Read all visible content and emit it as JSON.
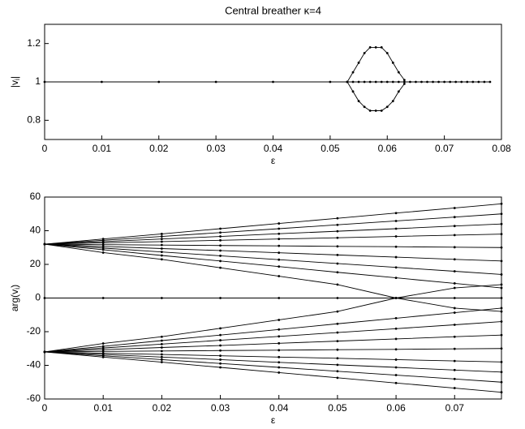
{
  "chart_data": [
    {
      "type": "line",
      "title": "Central breather   κ=4",
      "xlabel": "ε",
      "ylabel": {
        "base": "|v",
        "sub": "i",
        "end": "|"
      },
      "x": [
        0,
        0.01,
        0.02,
        0.03,
        0.04,
        0.05,
        0.053,
        0.054,
        0.055,
        0.056,
        0.057,
        0.058,
        0.059,
        0.06,
        0.061,
        0.062,
        0.063,
        0.064,
        0.065,
        0.066,
        0.067,
        0.068,
        0.069,
        0.07,
        0.071,
        0.072,
        0.073,
        0.074,
        0.075,
        0.076,
        0.077,
        0.078
      ],
      "series": [
        {
          "color": "#000000",
          "values": [
            1,
            1,
            1,
            1,
            1,
            1,
            1,
            1,
            1,
            1,
            1,
            1,
            1,
            1,
            1,
            1,
            1,
            1,
            1,
            1,
            1,
            1,
            1,
            1,
            1,
            1,
            1,
            1,
            1,
            1,
            1,
            1
          ]
        },
        {
          "color": "#000000",
          "values": [
            null,
            null,
            null,
            null,
            null,
            null,
            1,
            1.05,
            1.1,
            1.15,
            1.18,
            1.18,
            1.18,
            1.15,
            1.1,
            1.05,
            1.01,
            null,
            null,
            null,
            null,
            null,
            null,
            null,
            null,
            null,
            null,
            null,
            null,
            null,
            null,
            null
          ]
        },
        {
          "color": "#000000",
          "values": [
            null,
            null,
            null,
            null,
            null,
            null,
            1,
            0.95,
            0.9,
            0.87,
            0.85,
            0.85,
            0.85,
            0.87,
            0.9,
            0.95,
            0.99,
            null,
            null,
            null,
            null,
            null,
            null,
            null,
            null,
            null,
            null,
            null,
            null,
            null,
            null,
            null
          ]
        }
      ],
      "xlim": [
        0,
        0.08
      ],
      "xticks": [
        0,
        0.01,
        0.02,
        0.03,
        0.04,
        0.05,
        0.06,
        0.07,
        0.08
      ],
      "ylim": [
        0.7,
        1.3
      ],
      "yticks": [
        0.8,
        1,
        1.2
      ]
    },
    {
      "type": "line",
      "xlabel": "ε",
      "ylabel": {
        "base": "arg(v",
        "sub": "i",
        "end": ")"
      },
      "x": [
        0,
        0.01,
        0.02,
        0.03,
        0.04,
        0.05,
        0.06,
        0.07,
        0.078
      ],
      "series": [
        {
          "color": "#000000",
          "values": [
            32,
            35.1,
            38.1,
            41.2,
            44.3,
            47.4,
            50.5,
            53.5,
            56
          ]
        },
        {
          "color": "#000000",
          "values": [
            32,
            34.3,
            36.6,
            38.9,
            41.2,
            43.5,
            45.8,
            48.1,
            50
          ]
        },
        {
          "color": "#000000",
          "values": [
            32,
            33.5,
            35.1,
            36.6,
            38.2,
            39.7,
            41.2,
            42.8,
            44
          ]
        },
        {
          "color": "#000000",
          "values": [
            32,
            32.8,
            33.5,
            34.3,
            35.1,
            35.8,
            36.6,
            37.4,
            38
          ]
        },
        {
          "color": "#000000",
          "values": [
            32,
            31.7,
            31.5,
            31.2,
            31,
            30.7,
            30.5,
            30.2,
            30
          ]
        },
        {
          "color": "#000000",
          "values": [
            32,
            30.7,
            29.4,
            28.2,
            26.9,
            25.6,
            24.3,
            23,
            22
          ]
        },
        {
          "color": "#000000",
          "values": [
            32,
            29.7,
            27.4,
            25.1,
            22.8,
            20.5,
            18.2,
            15.9,
            14
          ]
        },
        {
          "color": "#000000",
          "values": [
            32,
            28.7,
            25.3,
            22,
            18.7,
            15.3,
            12,
            8.7,
            6
          ]
        },
        {
          "color": "#000000",
          "values": [
            32,
            27,
            23,
            18,
            13,
            8,
            0,
            6,
            8
          ]
        },
        {
          "color": "#000000",
          "values": [
            0,
            0,
            0,
            0,
            0,
            0,
            0,
            0,
            0
          ]
        },
        {
          "color": "#000000",
          "values": [
            -32,
            -27,
            -23,
            -18,
            -13,
            -8,
            0,
            -6,
            -8
          ]
        },
        {
          "color": "#000000",
          "values": [
            -32,
            -28.7,
            -25.3,
            -22,
            -18.7,
            -15.3,
            -12,
            -8.7,
            -6
          ]
        },
        {
          "color": "#000000",
          "values": [
            -32,
            -29.7,
            -27.4,
            -25.1,
            -22.8,
            -20.5,
            -18.2,
            -15.9,
            -14
          ]
        },
        {
          "color": "#000000",
          "values": [
            -32,
            -30.7,
            -29.4,
            -28.2,
            -26.9,
            -25.6,
            -24.3,
            -23,
            -22
          ]
        },
        {
          "color": "#000000",
          "values": [
            -32,
            -31.7,
            -31.5,
            -31.2,
            -31,
            -30.7,
            -30.5,
            -30.2,
            -30
          ]
        },
        {
          "color": "#000000",
          "values": [
            -32,
            -32.8,
            -33.5,
            -34.3,
            -35.1,
            -35.8,
            -36.6,
            -37.4,
            -38
          ]
        },
        {
          "color": "#000000",
          "values": [
            -32,
            -33.5,
            -35.1,
            -36.6,
            -38.2,
            -39.7,
            -41.2,
            -42.8,
            -44
          ]
        },
        {
          "color": "#000000",
          "values": [
            -32,
            -34.3,
            -36.6,
            -38.9,
            -41.2,
            -43.5,
            -45.8,
            -48.1,
            -50
          ]
        },
        {
          "color": "#000000",
          "values": [
            -32,
            -35.1,
            -38.1,
            -41.2,
            -44.3,
            -47.4,
            -50.5,
            -53.5,
            -56
          ]
        }
      ],
      "xlim": [
        0,
        0.078
      ],
      "xticks": [
        0,
        0.01,
        0.02,
        0.03,
        0.04,
        0.05,
        0.06,
        0.07
      ],
      "ylim": [
        -60,
        60
      ],
      "yticks": [
        -60,
        -40,
        -20,
        0,
        20,
        40,
        60
      ]
    }
  ]
}
